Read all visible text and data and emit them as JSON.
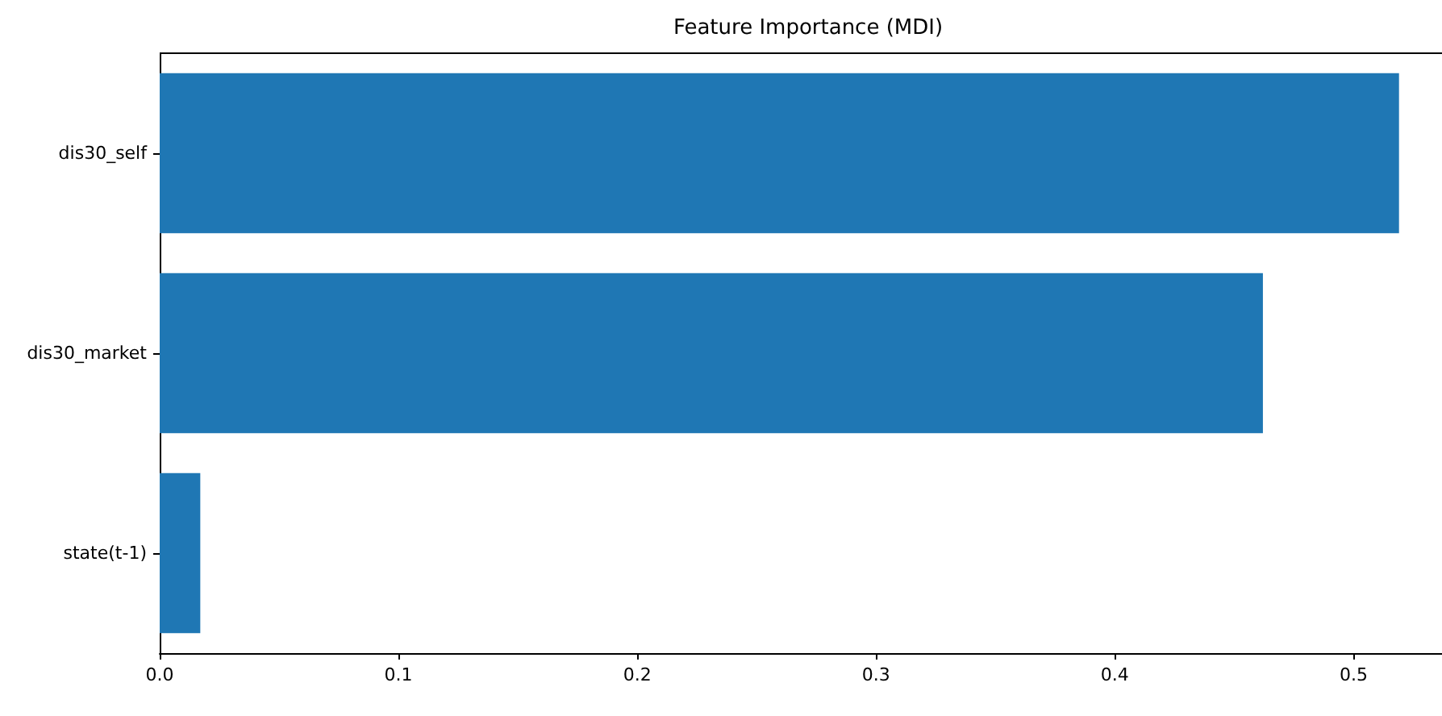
{
  "chart_data": {
    "type": "bar",
    "orientation": "horizontal",
    "title": "Feature Importance (MDI)",
    "categories": [
      "dis30_self",
      "dis30_market",
      "state(t-1)"
    ],
    "values": [
      0.519,
      0.462,
      0.017
    ],
    "color": "#1f77b4",
    "xlim": [
      0,
      0.537
    ],
    "xticks": [
      {
        "value": 0,
        "label": "0.0"
      },
      0.1,
      0.2,
      0.3,
      0.4,
      0.5
    ],
    "grid": false
  }
}
